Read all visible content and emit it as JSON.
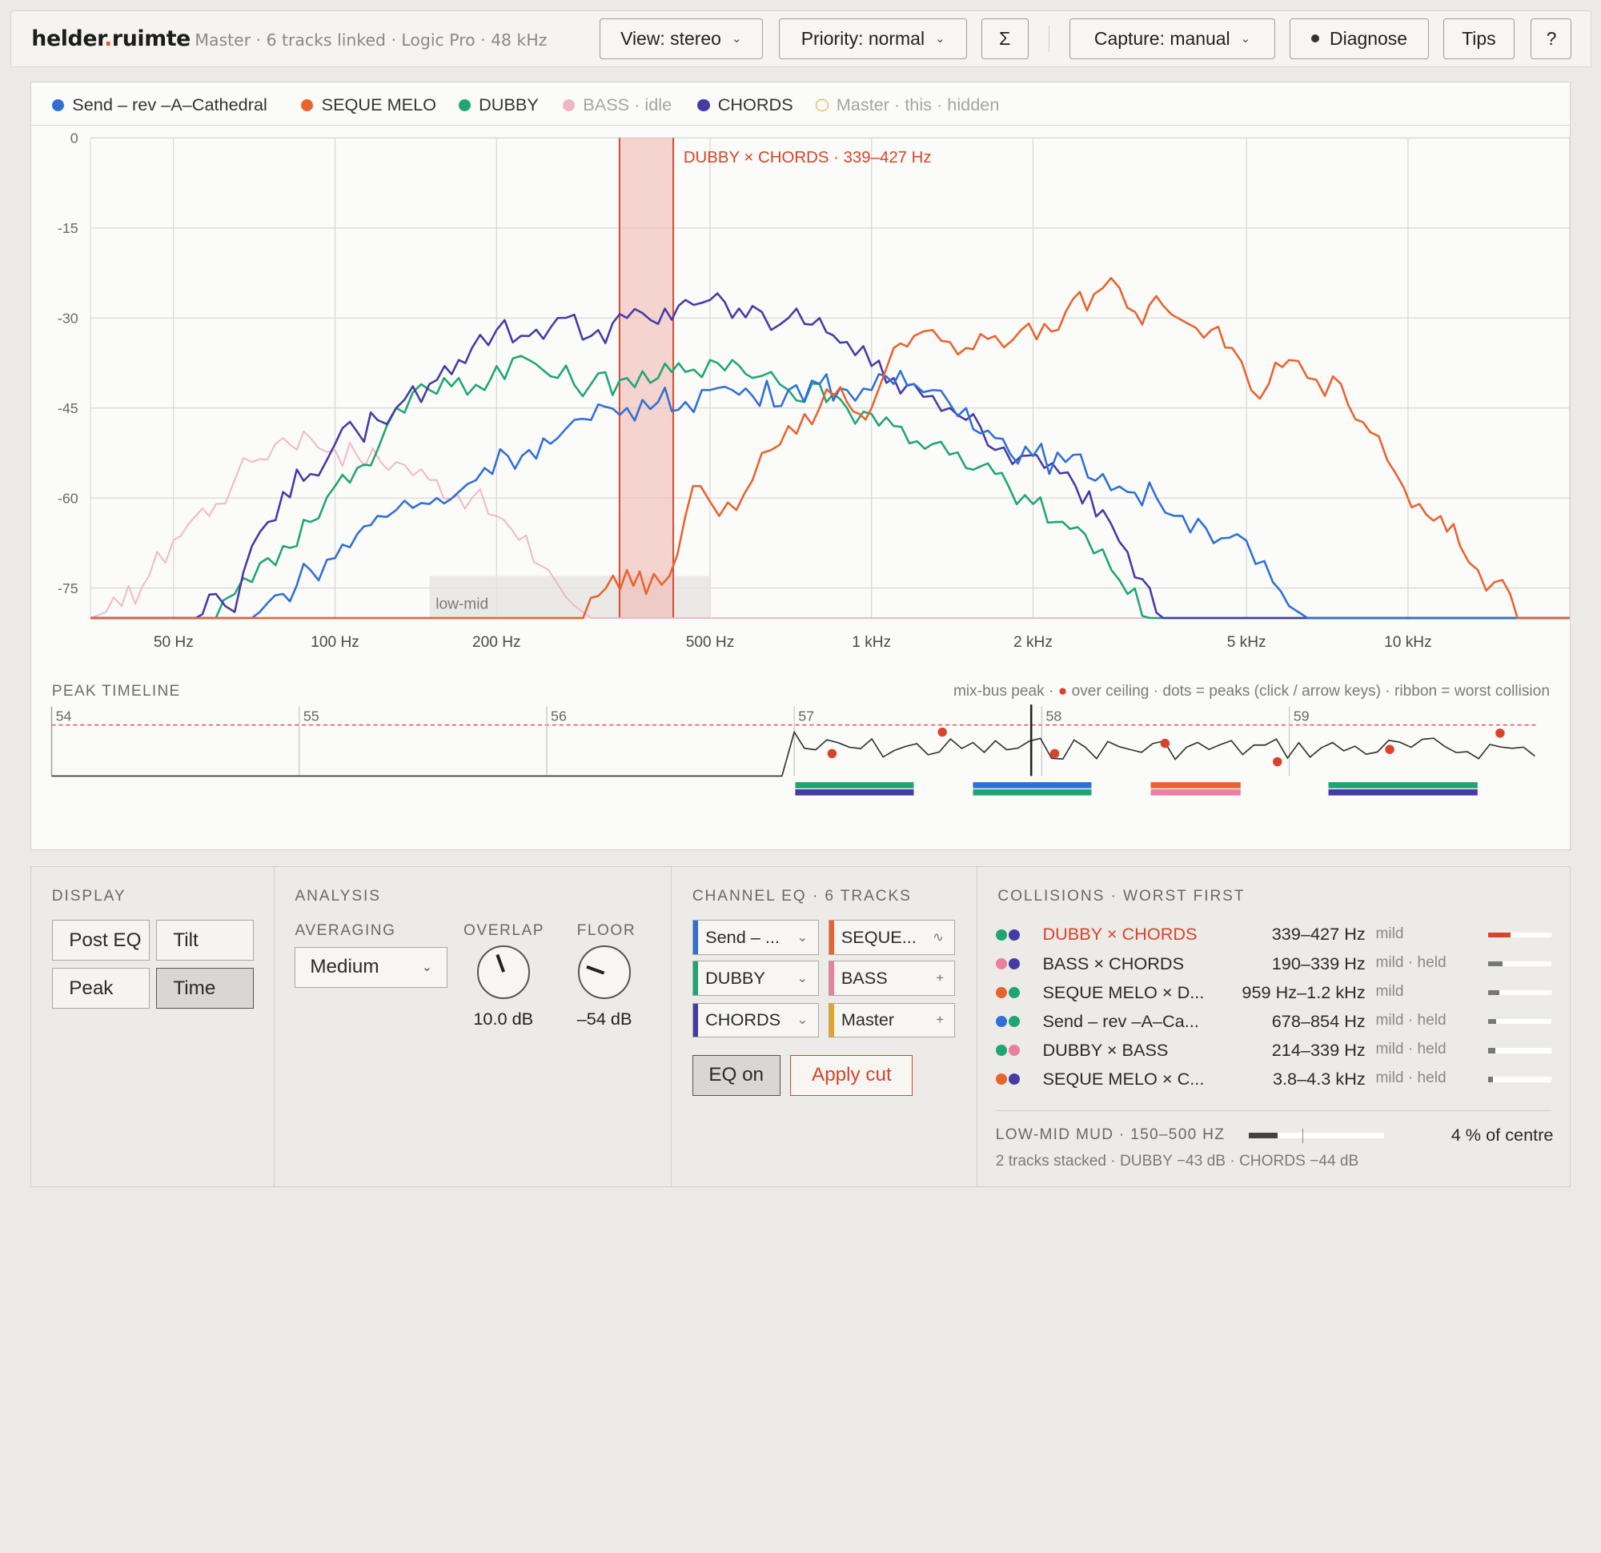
{
  "app": {
    "brand_a": "helder",
    "brand_dot": ".",
    "brand_b": "ruimte",
    "subtitle": "Master · 6 tracks linked · Logic Pro · 48 kHz"
  },
  "toolbar": {
    "view": "View: stereo",
    "priority": "Priority: normal",
    "sum": "Σ",
    "capture": "Capture: manual",
    "diagnose": "Diagnose",
    "tips": "Tips",
    "help": "?"
  },
  "legend": [
    {
      "label": "Send – rev –A–Cathedral",
      "color": "#2f6fd6",
      "state": "on"
    },
    {
      "label": "SEQUE MELO",
      "color": "#e8632e",
      "state": "on"
    },
    {
      "label": "DUBBY",
      "color": "#1fa574",
      "state": "on"
    },
    {
      "label": "BASS · idle",
      "color": "#f1b6c5",
      "state": "idle"
    },
    {
      "label": "CHORDS",
      "color": "#463aa7",
      "state": "on"
    },
    {
      "label": "Master · this · hidden",
      "color": "#e3a522",
      "state": "hidden"
    }
  ],
  "chart_data": {
    "type": "line",
    "x_scale": "log",
    "xlim": [
      35,
      20000
    ],
    "ylim": [
      -80,
      0
    ],
    "y_ticks": [
      "0",
      "-15",
      "-30",
      "-45",
      "-60",
      "-75"
    ],
    "x_ticks": [
      {
        "hz": 50,
        "label": "50 Hz"
      },
      {
        "hz": 100,
        "label": "100 Hz"
      },
      {
        "hz": 200,
        "label": "200 Hz"
      },
      {
        "hz": 500,
        "label": "500 Hz"
      },
      {
        "hz": 1000,
        "label": "1 kHz"
      },
      {
        "hz": 2000,
        "label": "2 kHz"
      },
      {
        "hz": 5000,
        "label": "5 kHz"
      },
      {
        "hz": 10000,
        "label": "10 kHz"
      }
    ],
    "floor_db": -80,
    "band": {
      "label": "low-mid",
      "from_hz": 150,
      "to_hz": 500
    },
    "collision": {
      "label": "DUBBY × CHORDS · 339–427 Hz",
      "from_hz": 339,
      "to_hz": 427
    },
    "series": [
      {
        "name": "BASS · idle",
        "color": "#f1b6c5",
        "points": [
          [
            35,
            -80
          ],
          [
            40,
            -78
          ],
          [
            45,
            -73
          ],
          [
            50,
            -67
          ],
          [
            55,
            -63
          ],
          [
            60,
            -61
          ],
          [
            65,
            -57
          ],
          [
            70,
            -54
          ],
          [
            80,
            -50
          ],
          [
            90,
            -50
          ],
          [
            100,
            -52
          ],
          [
            110,
            -53
          ],
          [
            130,
            -54
          ],
          [
            150,
            -57
          ],
          [
            180,
            -60
          ],
          [
            200,
            -63
          ],
          [
            220,
            -67
          ],
          [
            250,
            -72
          ],
          [
            280,
            -78
          ],
          [
            300,
            -80
          ],
          [
            20000,
            -80
          ]
        ]
      },
      {
        "name": "DUBBY",
        "color": "#1fa574",
        "points": [
          [
            35,
            -80
          ],
          [
            58,
            -80
          ],
          [
            62,
            -77
          ],
          [
            65,
            -76
          ],
          [
            70,
            -74
          ],
          [
            75,
            -70
          ],
          [
            80,
            -68
          ],
          [
            90,
            -64
          ],
          [
            100,
            -58
          ],
          [
            110,
            -55
          ],
          [
            120,
            -52
          ],
          [
            130,
            -45
          ],
          [
            150,
            -42
          ],
          [
            170,
            -40
          ],
          [
            190,
            -42
          ],
          [
            200,
            -38
          ],
          [
            230,
            -37
          ],
          [
            260,
            -40
          ],
          [
            300,
            -41
          ],
          [
            350,
            -40
          ],
          [
            400,
            -40
          ],
          [
            450,
            -39
          ],
          [
            500,
            -37
          ],
          [
            550,
            -37
          ],
          [
            600,
            -40
          ],
          [
            650,
            -39
          ],
          [
            700,
            -42
          ],
          [
            750,
            -44
          ],
          [
            800,
            -41
          ],
          [
            900,
            -45
          ],
          [
            1000,
            -46
          ],
          [
            1100,
            -48
          ],
          [
            1300,
            -51
          ],
          [
            1500,
            -55
          ],
          [
            1700,
            -56
          ],
          [
            1800,
            -58
          ],
          [
            2000,
            -61
          ],
          [
            2200,
            -64
          ],
          [
            2500,
            -66
          ],
          [
            2800,
            -72
          ],
          [
            3000,
            -76
          ],
          [
            3300,
            -80
          ],
          [
            20000,
            -80
          ]
        ]
      },
      {
        "name": "CHORDS",
        "color": "#463aa7",
        "points": [
          [
            35,
            -80
          ],
          [
            55,
            -80
          ],
          [
            60,
            -76
          ],
          [
            65,
            -79
          ],
          [
            70,
            -68
          ],
          [
            75,
            -64
          ],
          [
            80,
            -59
          ],
          [
            90,
            -56
          ],
          [
            100,
            -51
          ],
          [
            110,
            -49
          ],
          [
            120,
            -47
          ],
          [
            130,
            -45
          ],
          [
            150,
            -41
          ],
          [
            160,
            -38
          ],
          [
            170,
            -37
          ],
          [
            180,
            -35
          ],
          [
            200,
            -32
          ],
          [
            230,
            -33
          ],
          [
            260,
            -30
          ],
          [
            300,
            -33
          ],
          [
            350,
            -30
          ],
          [
            400,
            -31
          ],
          [
            450,
            -27
          ],
          [
            500,
            -27
          ],
          [
            550,
            -30
          ],
          [
            600,
            -28
          ],
          [
            650,
            -32
          ],
          [
            700,
            -30
          ],
          [
            750,
            -31
          ],
          [
            800,
            -30
          ],
          [
            900,
            -34
          ],
          [
            1000,
            -38
          ],
          [
            1100,
            -40
          ],
          [
            1200,
            -41
          ],
          [
            1300,
            -43
          ],
          [
            1400,
            -45
          ],
          [
            1500,
            -47
          ],
          [
            1700,
            -52
          ],
          [
            1900,
            -53
          ],
          [
            2100,
            -55
          ],
          [
            2400,
            -58
          ],
          [
            2700,
            -62
          ],
          [
            3000,
            -69
          ],
          [
            3300,
            -75
          ],
          [
            3600,
            -80
          ],
          [
            20000,
            -80
          ]
        ]
      },
      {
        "name": "Send – rev –A–Cathedral",
        "color": "#2f6fd6",
        "points": [
          [
            35,
            -80
          ],
          [
            70,
            -80
          ],
          [
            80,
            -76
          ],
          [
            90,
            -72
          ],
          [
            100,
            -70
          ],
          [
            110,
            -66
          ],
          [
            120,
            -63
          ],
          [
            130,
            -62
          ],
          [
            150,
            -61
          ],
          [
            170,
            -59
          ],
          [
            190,
            -55
          ],
          [
            210,
            -53
          ],
          [
            230,
            -52
          ],
          [
            260,
            -50
          ],
          [
            300,
            -47
          ],
          [
            350,
            -45
          ],
          [
            400,
            -44
          ],
          [
            450,
            -44
          ],
          [
            500,
            -42
          ],
          [
            550,
            -42
          ],
          [
            600,
            -43
          ],
          [
            700,
            -42
          ],
          [
            800,
            -41
          ],
          [
            900,
            -42
          ],
          [
            1000,
            -42
          ],
          [
            1100,
            -41
          ],
          [
            1200,
            -41
          ],
          [
            1300,
            -42
          ],
          [
            1500,
            -45
          ],
          [
            1700,
            -50
          ],
          [
            2000,
            -53
          ],
          [
            2300,
            -54
          ],
          [
            2700,
            -56
          ],
          [
            3000,
            -59
          ],
          [
            3400,
            -60
          ],
          [
            3800,
            -63
          ],
          [
            4200,
            -65
          ],
          [
            4800,
            -66
          ],
          [
            5200,
            -71
          ],
          [
            5600,
            -74
          ],
          [
            6000,
            -78
          ],
          [
            6500,
            -80
          ],
          [
            20000,
            -80
          ]
        ]
      },
      {
        "name": "SEQUE MELO",
        "color": "#e8632e",
        "points": [
          [
            35,
            -80
          ],
          [
            290,
            -80
          ],
          [
            320,
            -75
          ],
          [
            350,
            -72
          ],
          [
            380,
            -76
          ],
          [
            420,
            -73
          ],
          [
            450,
            -63
          ],
          [
            480,
            -58
          ],
          [
            520,
            -63
          ],
          [
            560,
            -62
          ],
          [
            600,
            -57
          ],
          [
            650,
            -52
          ],
          [
            700,
            -48
          ],
          [
            750,
            -46
          ],
          [
            800,
            -45
          ],
          [
            850,
            -43
          ],
          [
            900,
            -44
          ],
          [
            950,
            -46
          ],
          [
            1000,
            -45
          ],
          [
            1050,
            -40
          ],
          [
            1100,
            -35
          ],
          [
            1200,
            -33
          ],
          [
            1300,
            -32
          ],
          [
            1400,
            -34
          ],
          [
            1500,
            -35
          ],
          [
            1700,
            -33
          ],
          [
            1900,
            -32
          ],
          [
            2100,
            -31
          ],
          [
            2300,
            -29
          ],
          [
            2600,
            -26
          ],
          [
            2900,
            -25
          ],
          [
            3100,
            -29
          ],
          [
            3500,
            -28
          ],
          [
            3900,
            -31
          ],
          [
            4300,
            -32
          ],
          [
            4700,
            -35
          ],
          [
            5100,
            -42
          ],
          [
            5500,
            -41
          ],
          [
            6000,
            -37
          ],
          [
            6500,
            -40
          ],
          [
            7000,
            -43
          ],
          [
            7500,
            -41
          ],
          [
            8500,
            -49
          ],
          [
            9500,
            -56
          ],
          [
            10500,
            -61
          ],
          [
            11500,
            -63
          ],
          [
            12500,
            -68
          ],
          [
            13500,
            -72
          ],
          [
            14500,
            -74
          ],
          [
            15500,
            -76
          ],
          [
            16000,
            -80
          ],
          [
            20000,
            -80
          ]
        ]
      }
    ]
  },
  "timeline": {
    "title": "PEAK TIMELINE",
    "note_a": "mix-bus peak · ",
    "note_dot": "●",
    "note_b": " over ceiling · dots = peaks (click / arrow keys) · ribbon = worst collision",
    "bars": [
      "54",
      "55",
      "56",
      "57",
      "58",
      "59"
    ]
  },
  "display": {
    "title": "DISPLAY",
    "post_eq": "Post EQ",
    "tilt": "Tilt",
    "peak": "Peak",
    "time": "Time"
  },
  "analysis": {
    "title": "ANALYSIS",
    "averaging_label": "AVERAGING",
    "averaging": "Medium",
    "overlap_label": "OVERLAP",
    "overlap": "10.0 dB",
    "floor_label": "FLOOR",
    "floor": "–54 dB"
  },
  "channel_eq": {
    "title": "CHANNEL EQ · 6 TRACKS",
    "channels": [
      {
        "label": "Send – ...",
        "color": "#2f6fd6",
        "end": "⌄"
      },
      {
        "label": "SEQUE...",
        "color": "#e8632e",
        "end": "∿"
      },
      {
        "label": "DUBBY",
        "color": "#1fa574",
        "end": "⌄"
      },
      {
        "label": "BASS",
        "color": "#ea7fa3",
        "end": "+"
      },
      {
        "label": "CHORDS",
        "color": "#463aa7",
        "end": "⌄"
      },
      {
        "label": "Master",
        "color": "#e3a522",
        "end": "+"
      }
    ],
    "eq_on": "EQ on",
    "apply": "Apply cut"
  },
  "collisions": {
    "title": "COLLISIONS · WORST FIRST",
    "rows": [
      {
        "name": "DUBBY × CHORDS",
        "range": "339–427 Hz",
        "status": "mild",
        "c1": "#1fa574",
        "c2": "#463aa7",
        "level": 0.35,
        "worst": true
      },
      {
        "name": "BASS × CHORDS",
        "range": "190–339 Hz",
        "status": "mild · held",
        "c1": "#ea7fa3",
        "c2": "#463aa7",
        "level": 0.22
      },
      {
        "name": "SEQUE MELO × D...",
        "range": "959 Hz–1.2 kHz",
        "status": "mild",
        "c1": "#e8632e",
        "c2": "#1fa574",
        "level": 0.17
      },
      {
        "name": "Send – rev –A–Ca...",
        "range": "678–854 Hz",
        "status": "mild · held",
        "c1": "#2f6fd6",
        "c2": "#1fa574",
        "level": 0.13
      },
      {
        "name": "DUBBY × BASS",
        "range": "214–339 Hz",
        "status": "mild · held",
        "c1": "#1fa574",
        "c2": "#ea7fa3",
        "level": 0.12
      },
      {
        "name": "SEQUE MELO × C...",
        "range": "3.8–4.3 kHz",
        "status": "mild · held",
        "c1": "#e8632e",
        "c2": "#463aa7",
        "level": 0.08
      }
    ],
    "mud_label": "LOW-MID MUD · 150–500 HZ",
    "mud_level": 0.04,
    "mud_pct": "4 % of centre",
    "mud_sub": "2 tracks stacked · DUBBY −43 dB · CHORDS −44 dB"
  }
}
